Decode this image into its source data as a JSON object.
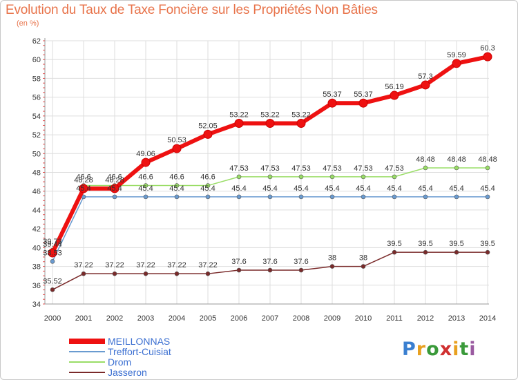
{
  "chart_data": {
    "type": "line",
    "title": "Evolution du Taux de Taxe Foncière sur les Propriétés Non Bâties",
    "unit_label": "(en %)",
    "xlabel": "",
    "ylabel": "",
    "categories": [
      "2000",
      "2001",
      "2002",
      "2003",
      "2004",
      "2005",
      "2006",
      "2007",
      "2008",
      "2009",
      "2010",
      "2011",
      "2012",
      "2013",
      "2014"
    ],
    "ylim": [
      34,
      62
    ],
    "yticks": [
      "34",
      "36",
      "38",
      "40",
      "42",
      "44",
      "46",
      "48",
      "50",
      "52",
      "54",
      "56",
      "58",
      "60",
      "62"
    ],
    "grid": true,
    "legend_position": "bottom-left",
    "series": [
      {
        "name": "MEILLONNAS",
        "color": "#ee1111",
        "values": [
          39.44,
          46.28,
          46.28,
          49.06,
          50.53,
          52.05,
          53.22,
          53.22,
          53.22,
          55.37,
          55.37,
          56.19,
          57.3,
          59.59,
          60.3
        ],
        "labels": [
          "39.44",
          "46.28",
          "46.28",
          "49.06",
          "50.53",
          "52.05",
          "53.22",
          "53.22",
          "53.22",
          "55.37",
          "55.37",
          "56.19",
          "57.3",
          "59.59",
          "60.3"
        ]
      },
      {
        "name": "Treffort-Cuisiat",
        "color": "#6a9bd0",
        "values": [
          38.53,
          45.4,
          45.4,
          45.4,
          45.4,
          45.4,
          45.4,
          45.4,
          45.4,
          45.4,
          45.4,
          45.4,
          45.4,
          45.4,
          45.4
        ],
        "labels": [
          "38.53",
          "45.4",
          "45.4",
          "45.4",
          "45.4",
          "45.4",
          "45.4",
          "45.4",
          "45.4",
          "45.4",
          "45.4",
          "45.4",
          "45.4",
          "45.4",
          "45.4"
        ]
      },
      {
        "name": "Drom",
        "color": "#99dd66",
        "values": [
          39.73,
          46.6,
          46.6,
          46.6,
          46.6,
          46.6,
          47.53,
          47.53,
          47.53,
          47.53,
          47.53,
          47.53,
          48.48,
          48.48,
          48.48
        ],
        "labels": [
          "39.73",
          "46.6",
          "46.6",
          "46.6",
          "46.6",
          "46.6",
          "47.53",
          "47.53",
          "47.53",
          "47.53",
          "47.53",
          "47.53",
          "48.48",
          "48.48",
          "48.48"
        ]
      },
      {
        "name": "Jasseron",
        "color": "#7a2a2a",
        "values": [
          35.52,
          37.22,
          37.22,
          37.22,
          37.22,
          37.22,
          37.6,
          37.6,
          37.6,
          38,
          38,
          39.5,
          39.5,
          39.5,
          39.5
        ],
        "labels": [
          "35.52",
          "37.22",
          "37.22",
          "37.22",
          "37.22",
          "37.22",
          "37.6",
          "37.6",
          "37.6",
          "38",
          "38",
          "39.5",
          "39.5",
          "39.5",
          "39.5"
        ]
      }
    ]
  },
  "brand": {
    "letters": [
      "P",
      "r",
      "o",
      "x",
      "i",
      "t",
      "i"
    ],
    "colors": [
      "#3a7fd0",
      "#e8a020",
      "#3a9a3a",
      "#d03030",
      "#e8a020",
      "#3a9a3a",
      "#9a5aa0"
    ]
  }
}
